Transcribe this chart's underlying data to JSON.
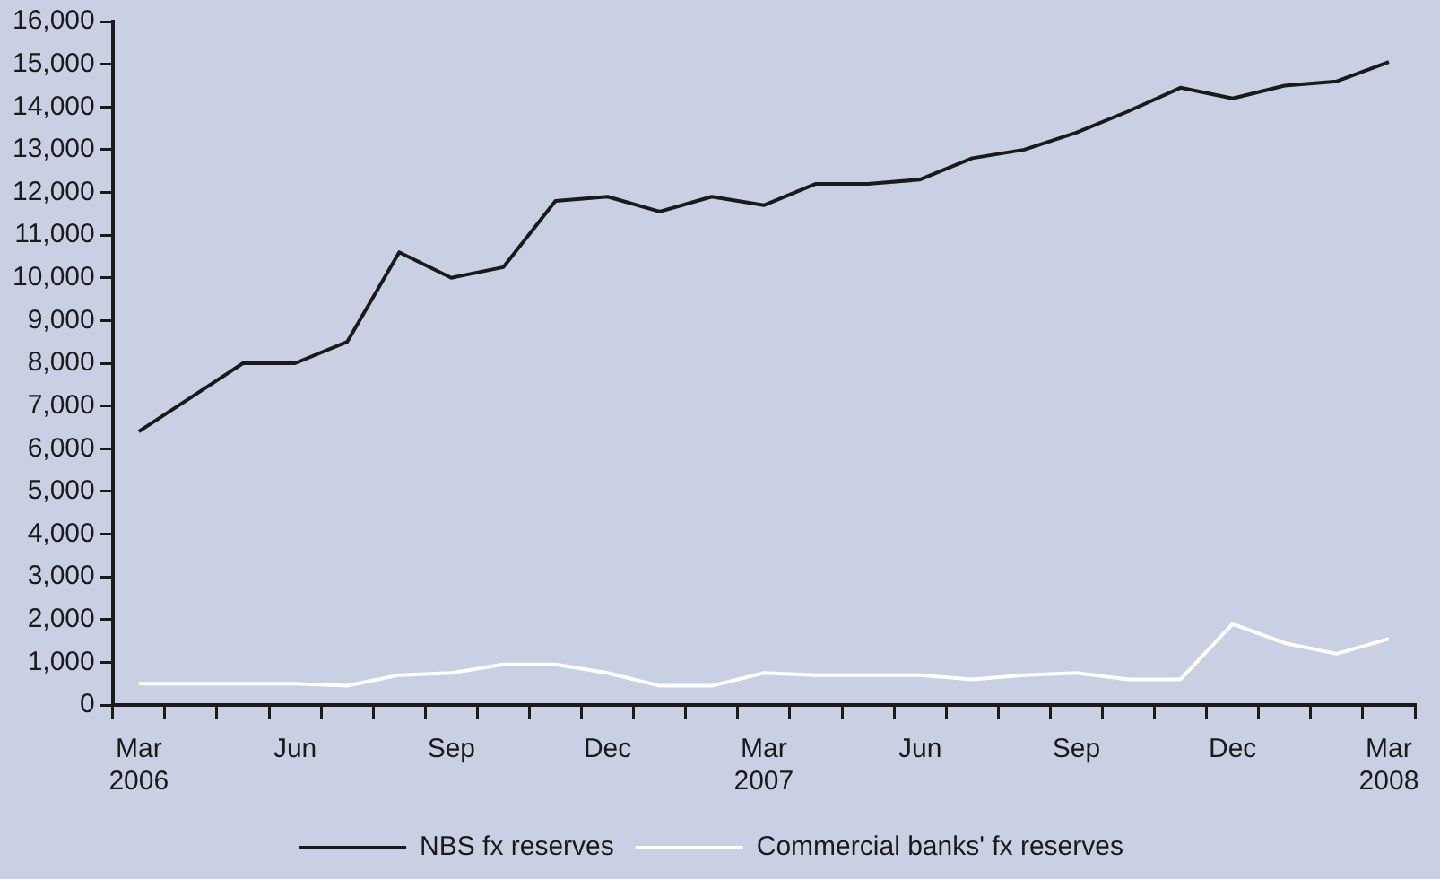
{
  "chart_data": {
    "type": "line",
    "categories": [
      "Mar 2006",
      null,
      null,
      "Jun",
      null,
      null,
      "Sep",
      null,
      null,
      "Dec",
      null,
      null,
      "Mar 2007",
      null,
      null,
      "Jun",
      null,
      null,
      "Sep",
      null,
      null,
      "Dec",
      null,
      null,
      "Mar 2008"
    ],
    "series": [
      {
        "name": "NBS fx reserves",
        "color": "#1a1a1a",
        "values": [
          6400,
          7200,
          8000,
          8000,
          8500,
          10600,
          10000,
          10250,
          11800,
          11900,
          11550,
          11900,
          11700,
          12200,
          12200,
          12300,
          12800,
          13000,
          13400,
          13900,
          14450,
          14200,
          14500,
          14600,
          15050
        ]
      },
      {
        "name": "Commercial banks' fx reserves",
        "color": "#ffffff",
        "values": [
          500,
          500,
          500,
          500,
          450,
          700,
          750,
          950,
          950,
          750,
          450,
          450,
          750,
          700,
          700,
          700,
          600,
          700,
          750,
          600,
          600,
          1900,
          1450,
          1200,
          1550
        ]
      }
    ],
    "ylim": [
      0,
      16000
    ],
    "yticks": [
      {
        "value": 0,
        "label": "0"
      },
      {
        "value": 1000,
        "label": "1,000"
      },
      {
        "value": 2000,
        "label": "2,000"
      },
      {
        "value": 3000,
        "label": "3,000"
      },
      {
        "value": 4000,
        "label": "4,000"
      },
      {
        "value": 5000,
        "label": "5,000"
      },
      {
        "value": 6000,
        "label": "6,000"
      },
      {
        "value": 7000,
        "label": "7,000"
      },
      {
        "value": 8000,
        "label": "8,000"
      },
      {
        "value": 9000,
        "label": "9,000"
      },
      {
        "value": 10000,
        "label": "10,000"
      },
      {
        "value": 11000,
        "label": "11,000"
      },
      {
        "value": 12000,
        "label": "12,000"
      },
      {
        "value": 13000,
        "label": "13,000"
      },
      {
        "value": 14000,
        "label": "14,000"
      },
      {
        "value": 15000,
        "label": "15,000"
      },
      {
        "value": 16000,
        "label": "16,000"
      }
    ],
    "grid": false,
    "legend": "bottom",
    "marker": "none",
    "line_style": "solid"
  }
}
